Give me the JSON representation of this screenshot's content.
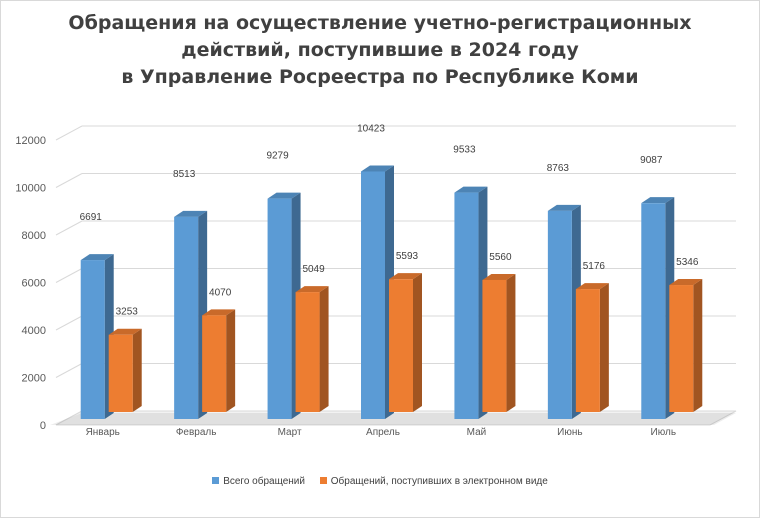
{
  "chart_data": {
    "type": "bar",
    "title_lines": [
      "Обращения на осуществление учетно-регистрационных",
      "действий, поступившие в 2024 году",
      "в Управление Росреестра по Республике Коми"
    ],
    "categories": [
      "Январь",
      "Февраль",
      "Март",
      "Апрель",
      "Май",
      "Июнь",
      "Июль"
    ],
    "series": [
      {
        "name": "Всего обращений",
        "values": [
          6691,
          8513,
          9279,
          10423,
          9533,
          8763,
          9087
        ],
        "color": "#5b9bd5"
      },
      {
        "name": "Обращений, поступивших в электронном виде",
        "values": [
          3253,
          4070,
          5049,
          5593,
          5560,
          5176,
          5346
        ],
        "color": "#ed7d31"
      }
    ],
    "ylim": [
      0,
      12000
    ],
    "yticks": [
      0,
      2000,
      4000,
      6000,
      8000,
      10000,
      12000
    ],
    "grid": true,
    "legend_position": "bottom",
    "style": "3d-clustered-column"
  }
}
